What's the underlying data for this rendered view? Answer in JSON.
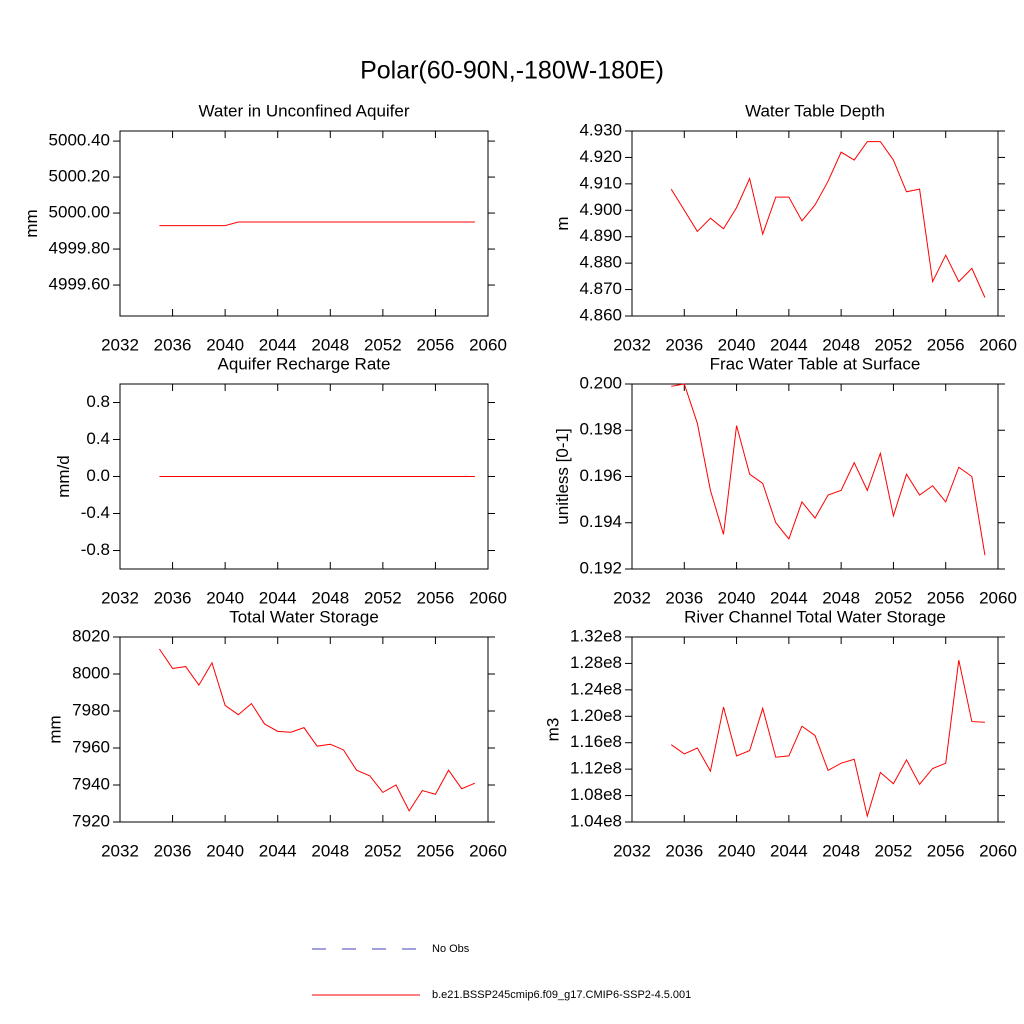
{
  "title": "Polar(60-90N,-180W-180E)",
  "legend": [
    {
      "name": "No Obs",
      "color": "#4040c0",
      "dash": true
    },
    {
      "name": "b.e21.BSSP245cmip6.f09_g17.CMIP6-SSP2-4.5.001",
      "color": "#ff0000",
      "dash": false
    }
  ],
  "chart_data": [
    {
      "type": "line",
      "title": "Water in Unconfined Aquifer",
      "y_label": "mm",
      "x": [
        2035,
        2036,
        2037,
        2038,
        2039,
        2040,
        2041,
        2042,
        2043,
        2044,
        2045,
        2046,
        2047,
        2048,
        2049,
        2050,
        2051,
        2052,
        2053,
        2054,
        2055,
        2056,
        2057,
        2058,
        2059
      ],
      "xlim": [
        2032,
        2060
      ],
      "xticks": [
        2032,
        2036,
        2040,
        2044,
        2048,
        2052,
        2056,
        2060
      ],
      "ylim": [
        4999.428,
        5000.456
      ],
      "yticks": [
        {
          "value": 4999.6,
          "label": "4999.60"
        },
        {
          "value": 4999.8,
          "label": "4999.80"
        },
        {
          "value": 5000.0,
          "label": "5000.00"
        },
        {
          "value": 5000.2,
          "label": "5000.20"
        },
        {
          "value": 5000.4,
          "label": "5000.40"
        }
      ],
      "series": [
        {
          "color": "#ff0000",
          "values": [
            4999.93,
            4999.93,
            4999.93,
            4999.93,
            4999.93,
            4999.93,
            4999.95,
            4999.95,
            4999.95,
            4999.95,
            4999.95,
            4999.95,
            4999.95,
            4999.95,
            4999.95,
            4999.95,
            4999.95,
            4999.95,
            4999.95,
            4999.95,
            4999.95,
            4999.95,
            4999.95,
            4999.95,
            4999.95
          ]
        }
      ]
    },
    {
      "type": "line",
      "title": "Water Table Depth",
      "y_label": "m",
      "x": [
        2035,
        2036,
        2037,
        2038,
        2039,
        2040,
        2041,
        2042,
        2043,
        2044,
        2045,
        2046,
        2047,
        2048,
        2049,
        2050,
        2051,
        2052,
        2053,
        2054,
        2055,
        2056,
        2057,
        2058,
        2059
      ],
      "xlim": [
        2032,
        2060
      ],
      "xticks": [
        2032,
        2036,
        2040,
        2044,
        2048,
        2052,
        2056,
        2060
      ],
      "ylim": [
        4.86,
        4.93
      ],
      "yticks": [
        {
          "value": 4.86,
          "label": "4.860"
        },
        {
          "value": 4.87,
          "label": "4.870"
        },
        {
          "value": 4.88,
          "label": "4.880"
        },
        {
          "value": 4.89,
          "label": "4.890"
        },
        {
          "value": 4.9,
          "label": "4.900"
        },
        {
          "value": 4.91,
          "label": "4.910"
        },
        {
          "value": 4.92,
          "label": "4.920"
        },
        {
          "value": 4.93,
          "label": "4.930"
        }
      ],
      "series": [
        {
          "color": "#ff0000",
          "values": [
            4.908,
            4.9,
            4.892,
            4.897,
            4.893,
            4.901,
            4.912,
            4.891,
            4.905,
            4.905,
            4.896,
            4.902,
            4.911,
            4.922,
            4.919,
            4.926,
            4.926,
            4.919,
            4.907,
            4.908,
            4.873,
            4.883,
            4.873,
            4.878,
            4.867
          ]
        }
      ]
    },
    {
      "type": "line",
      "title": "Aquifer Recharge Rate",
      "y_label": "mm/d",
      "x": [
        2035,
        2036,
        2037,
        2038,
        2039,
        2040,
        2041,
        2042,
        2043,
        2044,
        2045,
        2046,
        2047,
        2048,
        2049,
        2050,
        2051,
        2052,
        2053,
        2054,
        2055,
        2056,
        2057,
        2058,
        2059
      ],
      "xlim": [
        2032,
        2060
      ],
      "xticks": [
        2032,
        2036,
        2040,
        2044,
        2048,
        2052,
        2056,
        2060
      ],
      "ylim": [
        -1.0,
        1.0
      ],
      "yticks": [
        -0.8,
        -0.4,
        {
          "value": 0,
          "label": "0.0"
        },
        0.4,
        0.8
      ],
      "series": [
        {
          "color": "#ff0000",
          "values": [
            0,
            0,
            0,
            0,
            0,
            0,
            0,
            0,
            0,
            0,
            0,
            0,
            0,
            0,
            0,
            0,
            0,
            0,
            0,
            0,
            0,
            0,
            0,
            0,
            0
          ]
        }
      ]
    },
    {
      "type": "line",
      "title": "Frac Water Table at Surface",
      "y_label": "unitless [0-1]",
      "x": [
        2035,
        2036,
        2037,
        2038,
        2039,
        2040,
        2041,
        2042,
        2043,
        2044,
        2045,
        2046,
        2047,
        2048,
        2049,
        2050,
        2051,
        2052,
        2053,
        2054,
        2055,
        2056,
        2057,
        2058,
        2059
      ],
      "xlim": [
        2032,
        2060
      ],
      "xticks": [
        2032,
        2036,
        2040,
        2044,
        2048,
        2052,
        2056,
        2060
      ],
      "ylim": [
        0.192,
        0.2
      ],
      "yticks": [
        0.192,
        0.194,
        0.196,
        0.198,
        {
          "value": 0.2,
          "label": "0.200"
        }
      ],
      "series": [
        {
          "color": "#ff0000",
          "values": [
            0.1999,
            0.2,
            0.1983,
            0.1954,
            0.1935,
            0.1982,
            0.1961,
            0.1957,
            0.194,
            0.1933,
            0.1949,
            0.1942,
            0.1952,
            0.1954,
            0.1966,
            0.1954,
            0.197,
            0.1943,
            0.1961,
            0.1952,
            0.1956,
            0.1949,
            0.1964,
            0.196,
            0.1926
          ]
        }
      ]
    },
    {
      "type": "line",
      "title": "Total Water Storage",
      "y_label": "mm",
      "x": [
        2035,
        2036,
        2037,
        2038,
        2039,
        2040,
        2041,
        2042,
        2043,
        2044,
        2045,
        2046,
        2047,
        2048,
        2049,
        2050,
        2051,
        2052,
        2053,
        2054,
        2055,
        2056,
        2057,
        2058,
        2059
      ],
      "xlim": [
        2032,
        2060
      ],
      "xticks": [
        2032,
        2036,
        2040,
        2044,
        2048,
        2052,
        2056,
        2060
      ],
      "ylim": [
        7920,
        8020
      ],
      "yticks": [
        7920,
        7940,
        7960,
        7980,
        8000,
        8020
      ],
      "series": [
        {
          "color": "#ff0000",
          "values": [
            8013.5,
            8003,
            8004,
            7994,
            8006,
            7983,
            7978,
            7984,
            7973,
            7969,
            7968.5,
            7971,
            7961,
            7962,
            7959,
            7948,
            7945,
            7936,
            7940,
            7926,
            7937,
            7935,
            7948,
            7938,
            7941
          ]
        }
      ]
    },
    {
      "type": "line",
      "title": "River Channel Total Water Storage",
      "y_label": "m3",
      "x": [
        2035,
        2036,
        2037,
        2038,
        2039,
        2040,
        2041,
        2042,
        2043,
        2044,
        2045,
        2046,
        2047,
        2048,
        2049,
        2050,
        2051,
        2052,
        2053,
        2054,
        2055,
        2056,
        2057,
        2058,
        2059
      ],
      "xlim": [
        2032,
        2060
      ],
      "xticks": [
        2032,
        2036,
        2040,
        2044,
        2048,
        2052,
        2056,
        2060
      ],
      "ylim": [
        104000000,
        132000000
      ],
      "yticks": [
        {
          "value": 104000000,
          "label": "1.04e8"
        },
        {
          "value": 108000000,
          "label": "1.08e8"
        },
        {
          "value": 112000000,
          "label": "1.12e8"
        },
        {
          "value": 116000000,
          "label": "1.16e8"
        },
        {
          "value": 120000000,
          "label": "1.20e8"
        },
        {
          "value": 124000000,
          "label": "1.24e8"
        },
        {
          "value": 128000000,
          "label": "1.28e8"
        },
        {
          "value": 132000000,
          "label": "1.32e8"
        }
      ],
      "series": [
        {
          "color": "#ff0000",
          "values": [
            115700000,
            114300000,
            115200000,
            111700000,
            121400000,
            114000000,
            114800000,
            121200000,
            113800000,
            114000000,
            118500000,
            117100000,
            111800000,
            112900000,
            113500000,
            104900000,
            111500000,
            109800000,
            113400000,
            109700000,
            112100000,
            112900000,
            128500000,
            119200000,
            119100000
          ]
        }
      ]
    }
  ]
}
